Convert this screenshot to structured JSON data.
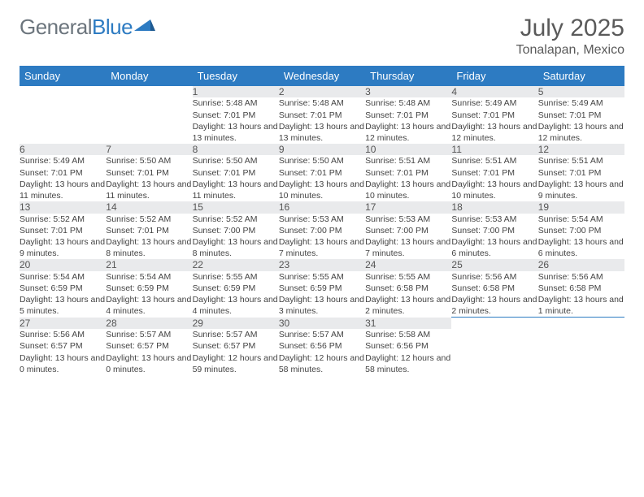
{
  "brand": {
    "part1": "General",
    "part2": "Blue",
    "text_color": "#6c757d",
    "accent_color": "#2d7bc2"
  },
  "header": {
    "month_title": "July 2025",
    "location": "Tonalapan, Mexico"
  },
  "colors": {
    "header_bg": "#2d7bc2",
    "header_text": "#ffffff",
    "daynum_bg": "#e9eaec",
    "row_border": "#2d7bc2",
    "body_text": "#444444"
  },
  "columns": [
    "Sunday",
    "Monday",
    "Tuesday",
    "Wednesday",
    "Thursday",
    "Friday",
    "Saturday"
  ],
  "weeks": [
    [
      null,
      null,
      {
        "n": "1",
        "sr": "5:48 AM",
        "ss": "7:01 PM",
        "dl": "13 hours and 13 minutes."
      },
      {
        "n": "2",
        "sr": "5:48 AM",
        "ss": "7:01 PM",
        "dl": "13 hours and 13 minutes."
      },
      {
        "n": "3",
        "sr": "5:48 AM",
        "ss": "7:01 PM",
        "dl": "13 hours and 12 minutes."
      },
      {
        "n": "4",
        "sr": "5:49 AM",
        "ss": "7:01 PM",
        "dl": "13 hours and 12 minutes."
      },
      {
        "n": "5",
        "sr": "5:49 AM",
        "ss": "7:01 PM",
        "dl": "13 hours and 12 minutes."
      }
    ],
    [
      {
        "n": "6",
        "sr": "5:49 AM",
        "ss": "7:01 PM",
        "dl": "13 hours and 11 minutes."
      },
      {
        "n": "7",
        "sr": "5:50 AM",
        "ss": "7:01 PM",
        "dl": "13 hours and 11 minutes."
      },
      {
        "n": "8",
        "sr": "5:50 AM",
        "ss": "7:01 PM",
        "dl": "13 hours and 11 minutes."
      },
      {
        "n": "9",
        "sr": "5:50 AM",
        "ss": "7:01 PM",
        "dl": "13 hours and 10 minutes."
      },
      {
        "n": "10",
        "sr": "5:51 AM",
        "ss": "7:01 PM",
        "dl": "13 hours and 10 minutes."
      },
      {
        "n": "11",
        "sr": "5:51 AM",
        "ss": "7:01 PM",
        "dl": "13 hours and 10 minutes."
      },
      {
        "n": "12",
        "sr": "5:51 AM",
        "ss": "7:01 PM",
        "dl": "13 hours and 9 minutes."
      }
    ],
    [
      {
        "n": "13",
        "sr": "5:52 AM",
        "ss": "7:01 PM",
        "dl": "13 hours and 9 minutes."
      },
      {
        "n": "14",
        "sr": "5:52 AM",
        "ss": "7:01 PM",
        "dl": "13 hours and 8 minutes."
      },
      {
        "n": "15",
        "sr": "5:52 AM",
        "ss": "7:00 PM",
        "dl": "13 hours and 8 minutes."
      },
      {
        "n": "16",
        "sr": "5:53 AM",
        "ss": "7:00 PM",
        "dl": "13 hours and 7 minutes."
      },
      {
        "n": "17",
        "sr": "5:53 AM",
        "ss": "7:00 PM",
        "dl": "13 hours and 7 minutes."
      },
      {
        "n": "18",
        "sr": "5:53 AM",
        "ss": "7:00 PM",
        "dl": "13 hours and 6 minutes."
      },
      {
        "n": "19",
        "sr": "5:54 AM",
        "ss": "7:00 PM",
        "dl": "13 hours and 6 minutes."
      }
    ],
    [
      {
        "n": "20",
        "sr": "5:54 AM",
        "ss": "6:59 PM",
        "dl": "13 hours and 5 minutes."
      },
      {
        "n": "21",
        "sr": "5:54 AM",
        "ss": "6:59 PM",
        "dl": "13 hours and 4 minutes."
      },
      {
        "n": "22",
        "sr": "5:55 AM",
        "ss": "6:59 PM",
        "dl": "13 hours and 4 minutes."
      },
      {
        "n": "23",
        "sr": "5:55 AM",
        "ss": "6:59 PM",
        "dl": "13 hours and 3 minutes."
      },
      {
        "n": "24",
        "sr": "5:55 AM",
        "ss": "6:58 PM",
        "dl": "13 hours and 2 minutes."
      },
      {
        "n": "25",
        "sr": "5:56 AM",
        "ss": "6:58 PM",
        "dl": "13 hours and 2 minutes."
      },
      {
        "n": "26",
        "sr": "5:56 AM",
        "ss": "6:58 PM",
        "dl": "13 hours and 1 minute."
      }
    ],
    [
      {
        "n": "27",
        "sr": "5:56 AM",
        "ss": "6:57 PM",
        "dl": "13 hours and 0 minutes."
      },
      {
        "n": "28",
        "sr": "5:57 AM",
        "ss": "6:57 PM",
        "dl": "13 hours and 0 minutes."
      },
      {
        "n": "29",
        "sr": "5:57 AM",
        "ss": "6:57 PM",
        "dl": "12 hours and 59 minutes."
      },
      {
        "n": "30",
        "sr": "5:57 AM",
        "ss": "6:56 PM",
        "dl": "12 hours and 58 minutes."
      },
      {
        "n": "31",
        "sr": "5:58 AM",
        "ss": "6:56 PM",
        "dl": "12 hours and 58 minutes."
      },
      null,
      null
    ]
  ],
  "labels": {
    "sunrise": "Sunrise:",
    "sunset": "Sunset:",
    "daylight": "Daylight:"
  }
}
